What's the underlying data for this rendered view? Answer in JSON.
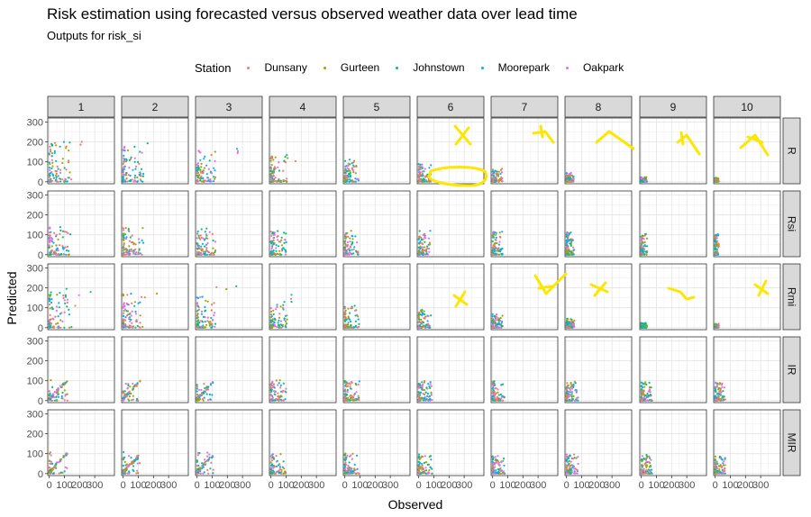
{
  "chart_data": {
    "type": "scatter",
    "title": "Risk estimation using forecasted versus observed weather data over lead time",
    "subtitle": "Outputs for  risk_si",
    "xlabel": "Observed",
    "ylabel": "Predicted",
    "legend_title": "Station",
    "legend_position": "top",
    "xlim": [
      -10,
      430
    ],
    "ylim": [
      -10,
      320
    ],
    "x_ticks": [
      "0",
      "100",
      "200",
      "300"
    ],
    "y_ticks": [
      "0",
      "100",
      "200",
      "300"
    ],
    "grid": true,
    "col_facets": [
      "1",
      "2",
      "3",
      "4",
      "5",
      "6",
      "7",
      "8",
      "9",
      "10"
    ],
    "row_facets": [
      "R",
      "Rsi",
      "Rmi",
      "IR",
      "MIR"
    ],
    "series": [
      {
        "name": "Dunsany",
        "color": "#F8766D"
      },
      {
        "name": "Gurteen",
        "color": "#A3A500"
      },
      {
        "name": "Johnstown",
        "color": "#00BF7D"
      },
      {
        "name": "Moorepark",
        "color": "#00B0F6"
      },
      {
        "name": "Oakpark",
        "color": "#E76BF3"
      }
    ],
    "annotation_color": "#FFE600",
    "annotated_panels": [
      "R-6",
      "R-7",
      "R-8",
      "R-9",
      "R-10",
      "Rmi-6",
      "Rmi-7",
      "Rmi-8",
      "Rmi-9",
      "Rmi-10"
    ],
    "strip_bg": "#D9D9D9",
    "note": "Predicted vs observed values per station, faceted by model (rows) and lead time (columns)"
  }
}
